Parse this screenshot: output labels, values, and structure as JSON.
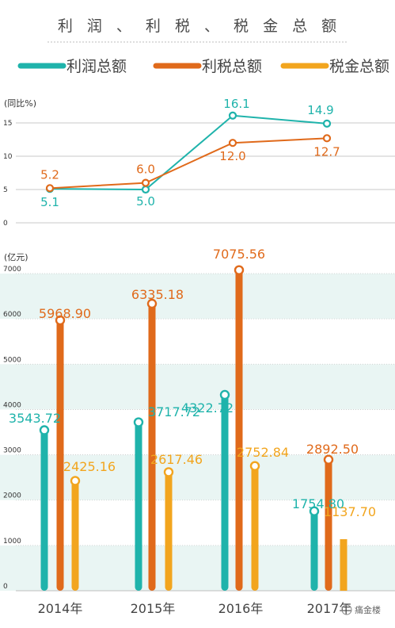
{
  "title": "利润、利税、税金总额",
  "title_display": "利 润 、 利 税 、 税 金 总 额",
  "watermark": "痛金楼",
  "colors": {
    "profit": "#1fb3ab",
    "tax_profit": "#e06a1b",
    "tax": "#f2a51e",
    "grid": "#c9c9c9",
    "band": "#e9f5f3"
  },
  "chart_data": [
    {
      "type": "line",
      "ylabel": "(同比%)",
      "ylim": [
        0,
        15
      ],
      "yticks": [
        "15",
        "10",
        "5",
        "0"
      ],
      "categories": [
        "2014年",
        "2015年",
        "2016年",
        "2017年"
      ],
      "series": [
        {
          "name": "利润总额",
          "values": [
            5.1,
            5.0,
            16.1,
            14.9
          ],
          "labels": [
            "5.1",
            "5.0",
            "16.1",
            "14.9"
          ]
        },
        {
          "name": "利税总额",
          "values": [
            5.2,
            6.0,
            12.0,
            12.7
          ],
          "labels": [
            "5.2",
            "6.0",
            "12.0",
            "12.7"
          ]
        }
      ]
    },
    {
      "type": "bar",
      "ylabel": "(亿元)",
      "ylim": [
        0,
        7000
      ],
      "yticks": [
        "7000",
        "6000",
        "5000",
        "4000",
        "3000",
        "2000",
        "1000",
        "0"
      ],
      "categories": [
        "2014年",
        "2015年",
        "2016年",
        "2017年"
      ],
      "legend": [
        "利润总额",
        "利税总额",
        "税金总额"
      ],
      "series": [
        {
          "name": "利润总额",
          "values": [
            3543.72,
            3717.72,
            4322.72,
            1754.8
          ],
          "labels": [
            "3543.72",
            "3717.72",
            "4322.72",
            "1754.80"
          ]
        },
        {
          "name": "利税总额",
          "values": [
            5968.9,
            6335.18,
            7075.56,
            2892.5
          ],
          "labels": [
            "5968.90",
            "6335.18",
            "7075.56",
            "2892.50"
          ]
        },
        {
          "name": "税金总额",
          "values": [
            2425.16,
            2617.46,
            2752.84,
            1137.7
          ],
          "labels": [
            "2425.16",
            "2617.46",
            "2752.84",
            "1137.70"
          ]
        }
      ]
    }
  ]
}
